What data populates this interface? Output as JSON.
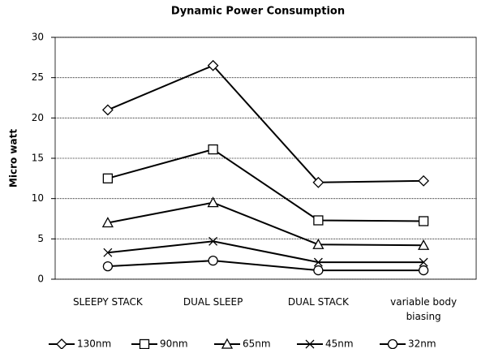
{
  "chart_data": {
    "type": "line",
    "title": "Dynamic Power Consumption",
    "y_label": "Micro watt",
    "categories": [
      "SLEEPY STACK",
      "DUAL SLEEP",
      "DUAL STACK",
      "variable body biasing"
    ],
    "series": [
      {
        "name": "130nm",
        "color": "#000000",
        "marker": "diamond",
        "values": [
          21,
          26.5,
          12,
          12.2
        ]
      },
      {
        "name": "90nm",
        "color": "#000000",
        "marker": "square",
        "values": [
          12.5,
          16.1,
          7.3,
          7.2
        ]
      },
      {
        "name": "65nm",
        "color": "#000000",
        "marker": "triangle",
        "values": [
          7,
          9.5,
          4.3,
          4.2
        ]
      },
      {
        "name": "45nm",
        "color": "#000000",
        "marker": "x",
        "values": [
          3.3,
          4.7,
          2.1,
          2.1
        ]
      },
      {
        "name": "32nm",
        "color": "#000000",
        "marker": "circle",
        "values": [
          1.6,
          2.3,
          1.1,
          1.1
        ]
      }
    ],
    "ylim": [
      0,
      30
    ],
    "yticks": [
      0,
      5,
      10,
      15,
      20,
      25,
      30
    ],
    "grid": true,
    "legend": "bottom"
  }
}
